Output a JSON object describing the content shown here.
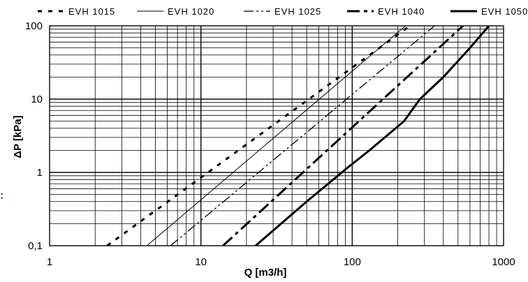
{
  "chart_data": {
    "type": "line",
    "title": "",
    "xlabel": "Q [m3/h]",
    "ylabel": "ΔP [kPa]",
    "x_scale": "log",
    "y_scale": "log",
    "xlim": [
      1,
      1000
    ],
    "ylim": [
      0.1,
      100
    ],
    "x_ticks": [
      {
        "value": 1,
        "label": "1"
      },
      {
        "value": 10,
        "label": "10"
      },
      {
        "value": 100,
        "label": "100"
      },
      {
        "value": 1000,
        "label": "1000"
      }
    ],
    "y_ticks": [
      {
        "value": 0.1,
        "label": "0,1"
      },
      {
        "value": 1,
        "label": "1"
      },
      {
        "value": 10,
        "label": "10"
      },
      {
        "value": 100,
        "label": "100"
      }
    ],
    "grid": true,
    "legend_position": "top",
    "series": [
      {
        "name": "EVH 1015",
        "style": "dash-dot-dot",
        "color": "#000000",
        "x": [
          2.4,
          240
        ],
        "y": [
          0.1,
          100
        ]
      },
      {
        "name": "EVH 1020",
        "style": "solid-thin",
        "color": "#000000",
        "x": [
          4.4,
          225
        ],
        "y": [
          0.1,
          100
        ]
      },
      {
        "name": "EVH 1025",
        "style": "long-dash-short-dash",
        "color": "#000000",
        "x": [
          6.3,
          350
        ],
        "y": [
          0.1,
          100
        ]
      },
      {
        "name": "EVH 1040",
        "style": "heavy-dash",
        "color": "#000000",
        "x": [
          14,
          540
        ],
        "y": [
          0.1,
          100
        ]
      },
      {
        "name": "EVH 1050",
        "style": "heavy-solid",
        "color": "#000000",
        "x": [
          23,
          50,
          95,
          130,
          220,
          280,
          400,
          600,
          800
        ],
        "y": [
          0.1,
          0.4,
          1.2,
          2,
          5,
          10,
          20,
          50,
          100
        ]
      }
    ]
  },
  "stray_mark": ":"
}
